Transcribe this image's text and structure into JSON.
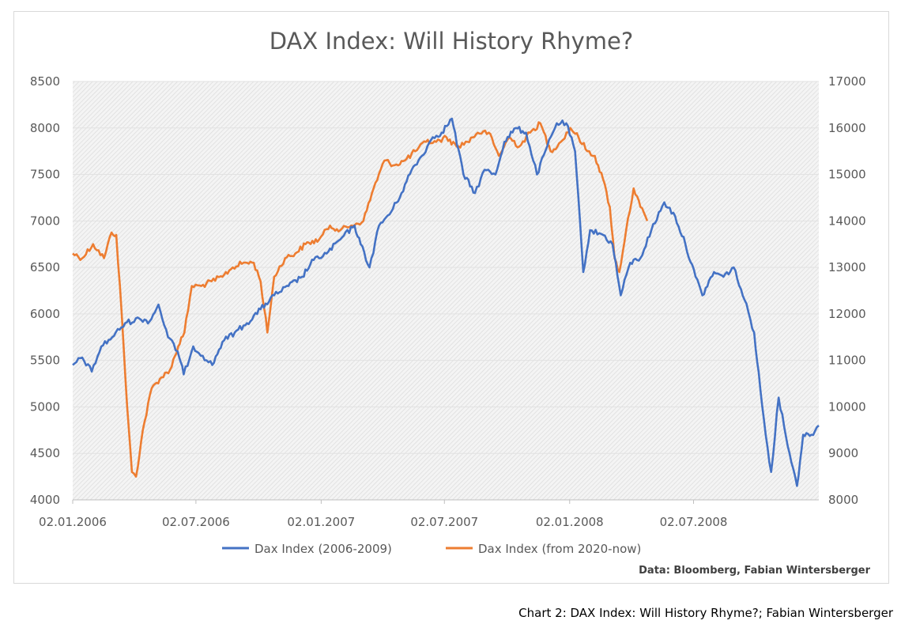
{
  "caption": "Chart 2: DAX Index: Will History Rhyme?; Fabian Wintersberger",
  "chart_data": {
    "type": "line",
    "title": "DAX Index: Will History Rhyme?",
    "source": "Data: Bloomberg, Fabian Wintersberger",
    "xlabel": "",
    "ylabel_left": "",
    "ylabel_right": "",
    "x_ticks": [
      "02.01.2006",
      "02.07.2006",
      "02.01.2007",
      "02.07.2007",
      "02.01.2008",
      "02.07.2008"
    ],
    "x_range": [
      "2006-01-02",
      "2009-01-02"
    ],
    "y_left": {
      "min": 4000,
      "max": 8500,
      "ticks": [
        4000,
        4500,
        5000,
        5500,
        6000,
        6500,
        7000,
        7500,
        8000,
        8500
      ]
    },
    "y_right": {
      "min": 8000,
      "max": 17000,
      "ticks": [
        8000,
        9000,
        10000,
        11000,
        12000,
        13000,
        14000,
        15000,
        16000,
        17000
      ]
    },
    "grid": true,
    "legend_position": "bottom",
    "series": [
      {
        "name": "Dax Index (2006-2009)",
        "axis": "left",
        "color": "#4472C4",
        "points": [
          [
            "2006-01-02",
            5450
          ],
          [
            "2006-01-16",
            5530
          ],
          [
            "2006-01-30",
            5380
          ],
          [
            "2006-02-13",
            5650
          ],
          [
            "2006-03-01",
            5750
          ],
          [
            "2006-03-20",
            5900
          ],
          [
            "2006-04-10",
            5950
          ],
          [
            "2006-04-25",
            5920
          ],
          [
            "2006-05-08",
            6100
          ],
          [
            "2006-05-22",
            5750
          ],
          [
            "2006-06-05",
            5600
          ],
          [
            "2006-06-14",
            5350
          ],
          [
            "2006-06-28",
            5650
          ],
          [
            "2006-07-12",
            5550
          ],
          [
            "2006-07-26",
            5450
          ],
          [
            "2006-08-10",
            5700
          ],
          [
            "2006-08-28",
            5800
          ],
          [
            "2006-09-15",
            5900
          ],
          [
            "2006-10-05",
            6050
          ],
          [
            "2006-10-25",
            6200
          ],
          [
            "2006-11-15",
            6300
          ],
          [
            "2006-12-05",
            6400
          ],
          [
            "2006-12-22",
            6580
          ],
          [
            "2007-01-10",
            6650
          ],
          [
            "2007-01-30",
            6800
          ],
          [
            "2007-02-20",
            6950
          ],
          [
            "2007-03-01",
            6750
          ],
          [
            "2007-03-14",
            6500
          ],
          [
            "2007-03-28",
            6950
          ],
          [
            "2007-04-15",
            7100
          ],
          [
            "2007-04-30",
            7300
          ],
          [
            "2007-05-15",
            7550
          ],
          [
            "2007-05-30",
            7700
          ],
          [
            "2007-06-15",
            7900
          ],
          [
            "2007-06-28",
            7950
          ],
          [
            "2007-07-13",
            8100
          ],
          [
            "2007-07-30",
            7500
          ],
          [
            "2007-08-16",
            7300
          ],
          [
            "2007-08-30",
            7550
          ],
          [
            "2007-09-15",
            7500
          ],
          [
            "2007-09-28",
            7850
          ],
          [
            "2007-10-15",
            8000
          ],
          [
            "2007-10-30",
            7950
          ],
          [
            "2007-11-15",
            7500
          ],
          [
            "2007-11-30",
            7800
          ],
          [
            "2007-12-14",
            8050
          ],
          [
            "2007-12-28",
            8050
          ],
          [
            "2008-01-10",
            7750
          ],
          [
            "2008-01-22",
            6450
          ],
          [
            "2008-02-01",
            6900
          ],
          [
            "2008-02-20",
            6850
          ],
          [
            "2008-03-05",
            6750
          ],
          [
            "2008-03-17",
            6200
          ],
          [
            "2008-03-31",
            6550
          ],
          [
            "2008-04-15",
            6600
          ],
          [
            "2008-05-01",
            6900
          ],
          [
            "2008-05-20",
            7200
          ],
          [
            "2008-06-05",
            7050
          ],
          [
            "2008-06-20",
            6750
          ],
          [
            "2008-07-05",
            6400
          ],
          [
            "2008-07-15",
            6200
          ],
          [
            "2008-08-01",
            6450
          ],
          [
            "2008-08-15",
            6400
          ],
          [
            "2008-08-30",
            6500
          ],
          [
            "2008-09-15",
            6150
          ],
          [
            "2008-09-29",
            5800
          ],
          [
            "2008-10-08",
            5200
          ],
          [
            "2008-10-16",
            4700
          ],
          [
            "2008-10-24",
            4300
          ],
          [
            "2008-11-04",
            5100
          ],
          [
            "2008-11-20",
            4500
          ],
          [
            "2008-12-01",
            4150
          ],
          [
            "2008-12-10",
            4700
          ],
          [
            "2008-12-22",
            4700
          ],
          [
            "2009-01-02",
            4800
          ]
        ]
      },
      {
        "name": "Dax Index (from 2020-now)",
        "axis": "right",
        "color": "#ED7D31",
        "points": [
          [
            "2006-01-02",
            13300
          ],
          [
            "2006-01-16",
            13200
          ],
          [
            "2006-02-01",
            13500
          ],
          [
            "2006-02-17",
            13200
          ],
          [
            "2006-02-28",
            13750
          ],
          [
            "2006-03-07",
            13700
          ],
          [
            "2006-03-15",
            12000
          ],
          [
            "2006-03-23",
            10000
          ],
          [
            "2006-03-30",
            8600
          ],
          [
            "2006-04-05",
            8500
          ],
          [
            "2006-04-15",
            9500
          ],
          [
            "2006-04-28",
            10400
          ],
          [
            "2006-05-10",
            10600
          ],
          [
            "2006-05-25",
            10800
          ],
          [
            "2006-06-06",
            11300
          ],
          [
            "2006-06-15",
            11600
          ],
          [
            "2006-06-26",
            12600
          ],
          [
            "2006-07-10",
            12600
          ],
          [
            "2006-07-25",
            12700
          ],
          [
            "2006-08-10",
            12800
          ],
          [
            "2006-08-25",
            13000
          ],
          [
            "2006-09-10",
            13100
          ],
          [
            "2006-09-25",
            13100
          ],
          [
            "2006-10-05",
            12700
          ],
          [
            "2006-10-15",
            11600
          ],
          [
            "2006-10-25",
            12800
          ],
          [
            "2006-11-10",
            13200
          ],
          [
            "2006-11-25",
            13300
          ],
          [
            "2006-12-10",
            13500
          ],
          [
            "2006-12-30",
            13600
          ],
          [
            "2007-01-15",
            13900
          ],
          [
            "2007-01-30",
            13800
          ],
          [
            "2007-02-15",
            13900
          ],
          [
            "2007-03-05",
            14000
          ],
          [
            "2007-03-20",
            14700
          ],
          [
            "2007-04-05",
            15300
          ],
          [
            "2007-04-20",
            15200
          ],
          [
            "2007-05-05",
            15300
          ],
          [
            "2007-05-20",
            15500
          ],
          [
            "2007-06-05",
            15700
          ],
          [
            "2007-06-20",
            15700
          ],
          [
            "2007-07-05",
            15800
          ],
          [
            "2007-07-20",
            15600
          ],
          [
            "2007-08-05",
            15700
          ],
          [
            "2007-08-20",
            15900
          ],
          [
            "2007-09-05",
            15900
          ],
          [
            "2007-09-20",
            15400
          ],
          [
            "2007-10-05",
            15800
          ],
          [
            "2007-10-20",
            15600
          ],
          [
            "2007-11-05",
            15900
          ],
          [
            "2007-11-20",
            16100
          ],
          [
            "2007-12-05",
            15500
          ],
          [
            "2007-12-20",
            15700
          ],
          [
            "2008-01-03",
            16000
          ],
          [
            "2008-01-15",
            15800
          ],
          [
            "2008-01-28",
            15500
          ],
          [
            "2008-02-08",
            15400
          ],
          [
            "2008-02-20",
            14900
          ],
          [
            "2008-03-01",
            14300
          ],
          [
            "2008-03-08",
            13200
          ],
          [
            "2008-03-15",
            12900
          ],
          [
            "2008-03-25",
            13800
          ],
          [
            "2008-04-05",
            14700
          ],
          [
            "2008-04-15",
            14300
          ],
          [
            "2008-04-25",
            14000
          ]
        ]
      }
    ]
  }
}
